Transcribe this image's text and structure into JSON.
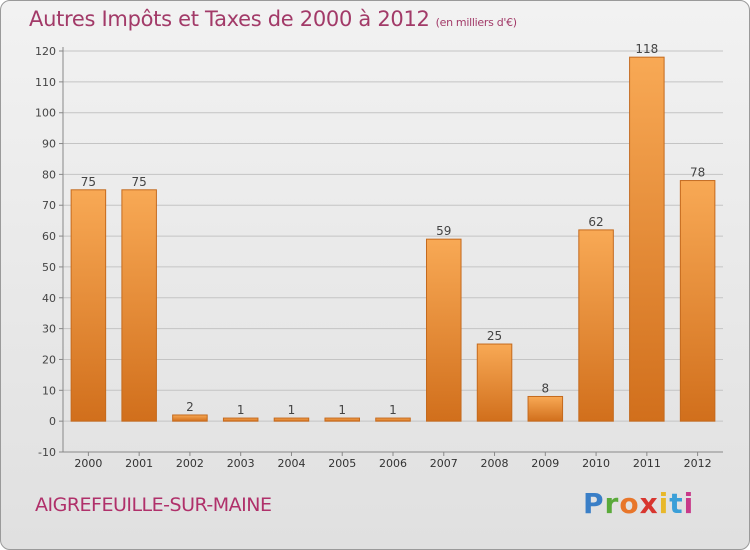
{
  "header": {
    "title": "Autres Impôts et Taxes de 2000 à 2012",
    "subtitle": "(en milliers d'€)"
  },
  "footer": {
    "commune": "AIGREFEUILLE-SUR-MAINE",
    "logo_letters": [
      "P",
      "r",
      "o",
      "x",
      "i",
      "t",
      "i"
    ]
  },
  "colors": {
    "bar_light": "#f8a955",
    "bar_dark": "#d16f1c",
    "title": "#a23a68",
    "logo": [
      "#3a7fc7",
      "#5aaa3a",
      "#e8762a",
      "#d8362f",
      "#e8b82a",
      "#3a9fd8",
      "#c83a8a"
    ]
  },
  "chart_data": {
    "type": "bar",
    "categories": [
      "2000",
      "2001",
      "2002",
      "2003",
      "2004",
      "2005",
      "2006",
      "2007",
      "2008",
      "2009",
      "2010",
      "2011",
      "2012"
    ],
    "values": [
      75,
      75,
      2,
      1,
      1,
      1,
      1,
      59,
      25,
      8,
      62,
      118,
      78
    ],
    "ylim": [
      -10,
      120
    ],
    "yticks": [
      -10,
      0,
      10,
      20,
      30,
      40,
      50,
      60,
      70,
      80,
      90,
      100,
      110,
      120
    ],
    "grid": true
  }
}
